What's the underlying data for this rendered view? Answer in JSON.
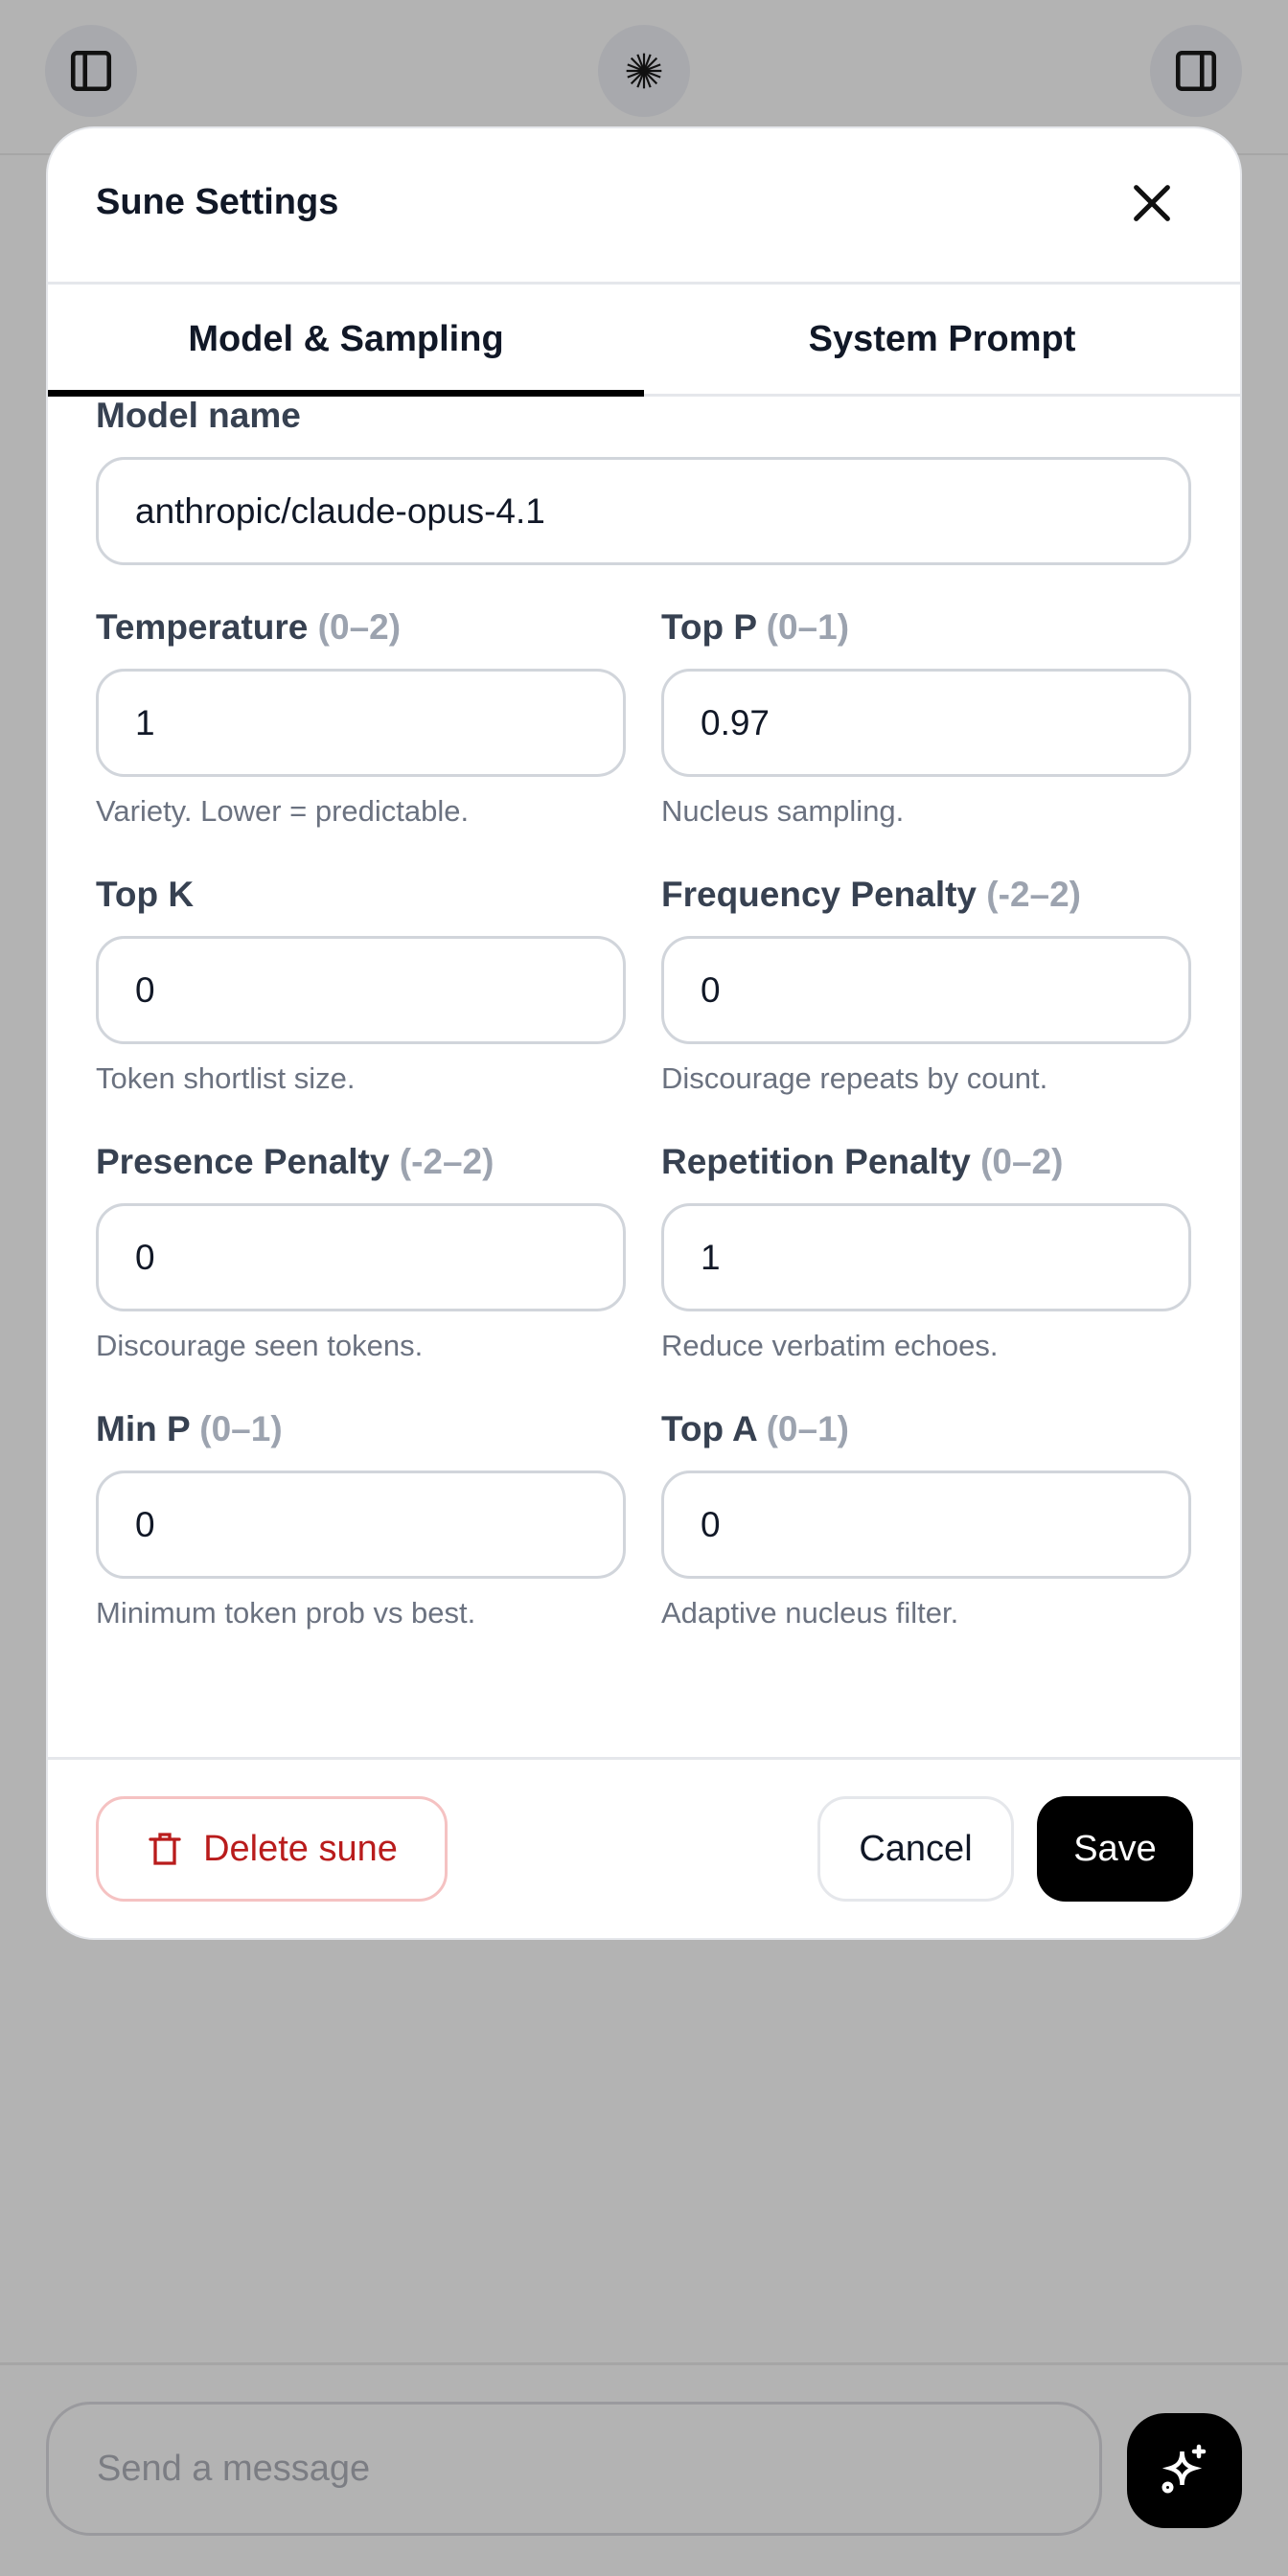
{
  "topbar": {
    "left_icon": "sidebar-left-icon",
    "center_icon": "starburst-icon",
    "right_icon": "sidebar-right-icon"
  },
  "modal": {
    "title": "Sune Settings",
    "close_icon": "close-icon",
    "tabs": [
      {
        "label": "Model & Sampling",
        "active": true
      },
      {
        "label": "System Prompt",
        "active": false
      }
    ],
    "model_name": {
      "label": "Model name",
      "value": "anthropic/claude-opus-4.1"
    },
    "fields": [
      {
        "label": "Temperature",
        "range": "(0–2)",
        "value": "1",
        "help": "Variety. Lower = predictable."
      },
      {
        "label": "Top P",
        "range": "(0–1)",
        "value": "0.97",
        "help": "Nucleus sampling."
      },
      {
        "label": "Top K",
        "range": "",
        "value": "0",
        "help": "Token shortlist size."
      },
      {
        "label": "Frequency Penalty",
        "range": "(-2–2)",
        "value": "0",
        "help": "Discourage repeats by count."
      },
      {
        "label": "Presence Penalty",
        "range": "(-2–2)",
        "value": "0",
        "help": "Discourage seen tokens."
      },
      {
        "label": "Repetition Penalty",
        "range": "(0–2)",
        "value": "1",
        "help": "Reduce verbatim echoes."
      },
      {
        "label": "Min P",
        "range": "(0–1)",
        "value": "0",
        "help": "Minimum token prob vs best."
      },
      {
        "label": "Top A",
        "range": "(0–1)",
        "value": "0",
        "help": "Adaptive nucleus filter."
      }
    ],
    "footer": {
      "delete_label": "Delete sune",
      "cancel_label": "Cancel",
      "save_label": "Save"
    }
  },
  "composer": {
    "placeholder": "Send a message",
    "send_icon": "sparkles-icon"
  },
  "colors": {
    "overlay": "#b3b3b3",
    "danger": "#b91c1c",
    "primary": "#000000"
  }
}
